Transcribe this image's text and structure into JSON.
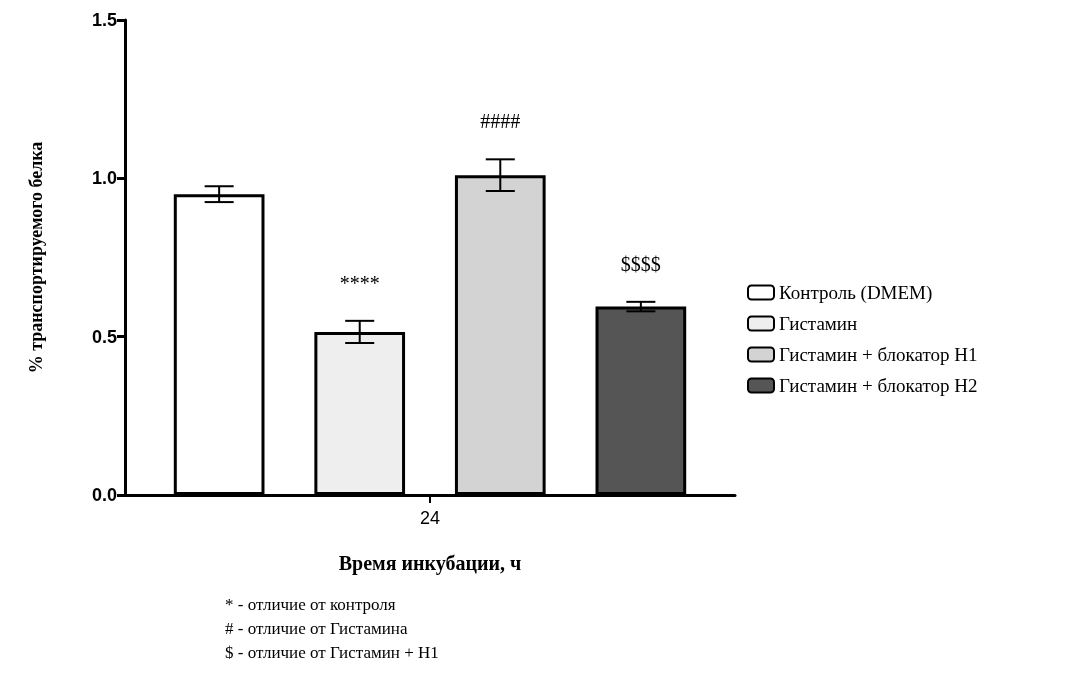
{
  "chart_data": {
    "type": "bar",
    "xlabel": "Время инкубации, ч",
    "ylabel": "% транспортируемого белка",
    "categories": [
      "24"
    ],
    "series": [
      {
        "name": "Контроль (DMEM)",
        "color": "#ffffff",
        "values": [
          0.95
        ],
        "errors": [
          0.025
        ],
        "value_labels": [
          null
        ]
      },
      {
        "name": "Гистамин",
        "color": "#eeeeee",
        "values": [
          0.515
        ],
        "errors": [
          0.035
        ],
        "value_labels": [
          "****"
        ]
      },
      {
        "name": "Гистамин + блокатор Н1",
        "color": "#d3d3d3",
        "values": [
          1.01
        ],
        "errors": [
          0.05
        ],
        "value_labels": [
          "####"
        ]
      },
      {
        "name": "Гистамин + блокатор Н2",
        "color": "#555555",
        "values": [
          0.595
        ],
        "errors": [
          0.015
        ],
        "value_labels": [
          "$$$$"
        ]
      }
    ],
    "ylim": [
      0,
      1.5
    ],
    "yticks": [
      {
        "value": 0,
        "label": "0.0"
      },
      {
        "value": 0.5,
        "label": "0.5"
      },
      {
        "value": 1,
        "label": "1.0"
      },
      {
        "value": 1.5,
        "label": "1.5"
      }
    ],
    "grid": false,
    "legend": "right",
    "annotations": [
      "* - отличие от контроля",
      "# - отличие от Гистамина",
      "$ - отличие от Гистамин + Н1"
    ]
  }
}
